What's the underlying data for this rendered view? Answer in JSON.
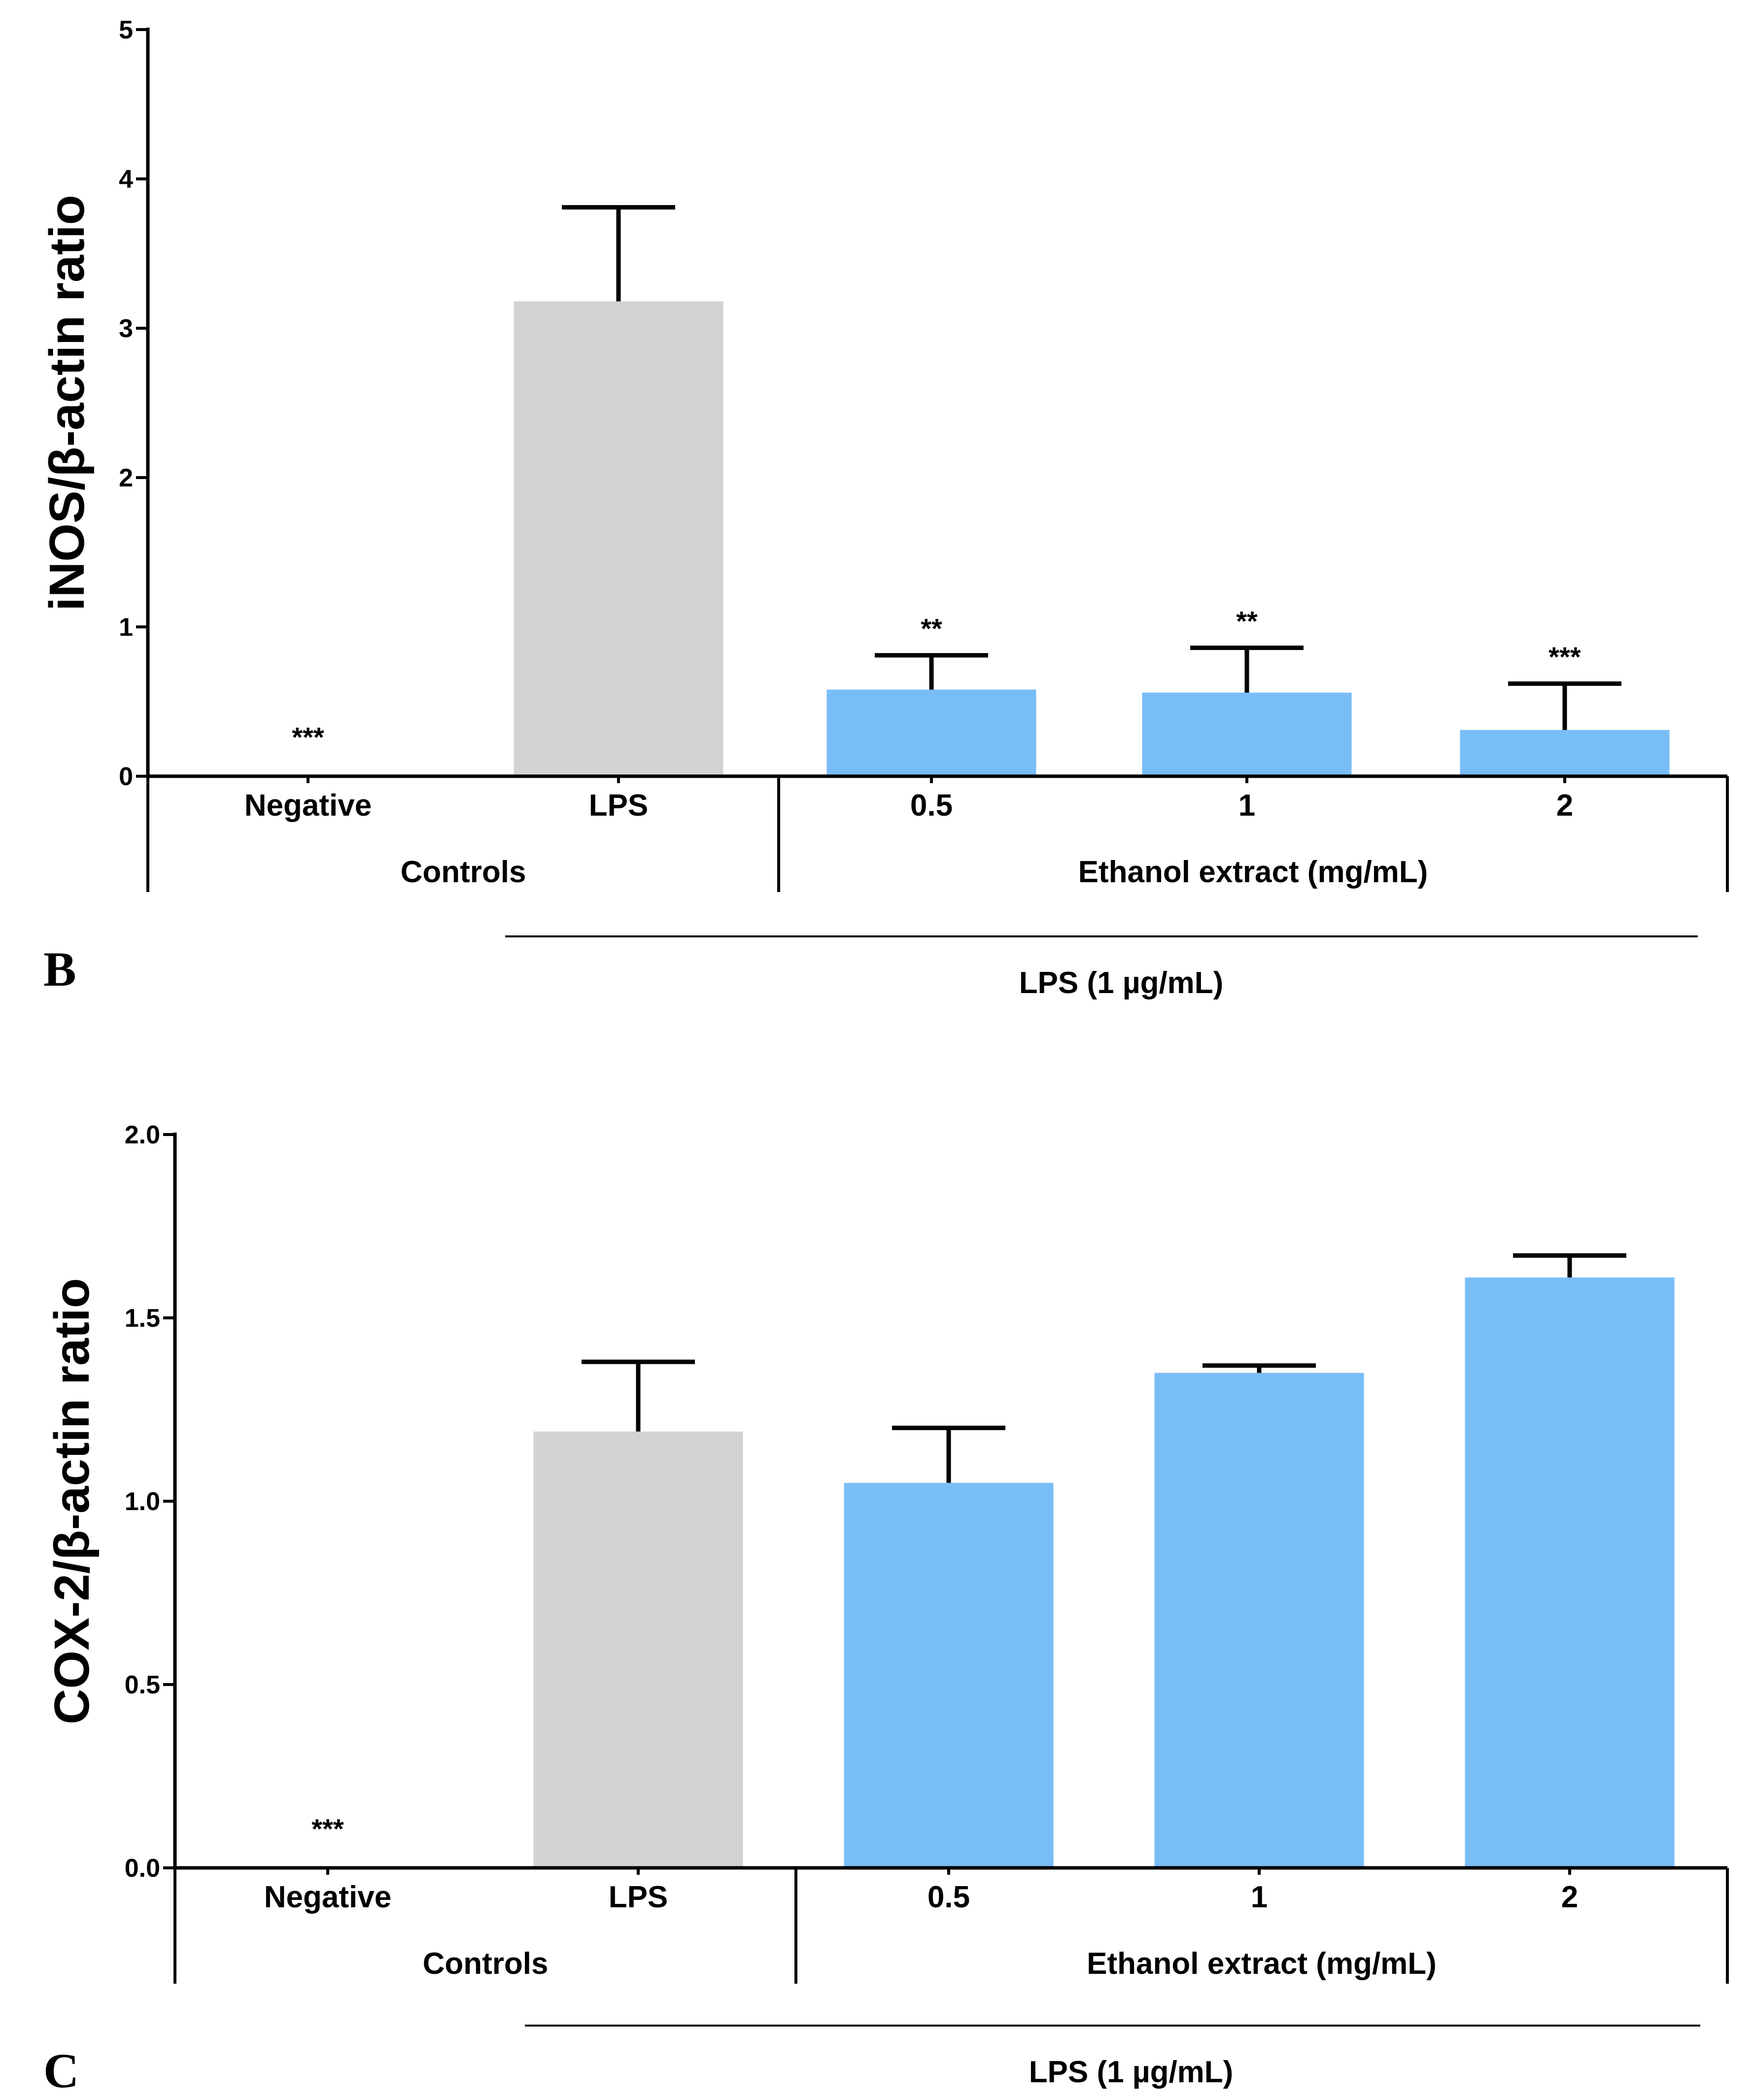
{
  "chart_data": [
    {
      "type": "bar",
      "panel": "",
      "ylabel": "iNOS/β-actin ratio",
      "ylim": [
        0,
        5
      ],
      "yticks": [
        "0",
        "1",
        "2",
        "3",
        "4",
        "5"
      ],
      "categories": [
        "Negative",
        "LPS",
        "0.5",
        "1",
        "2"
      ],
      "values": [
        0,
        3.18,
        0.58,
        0.56,
        0.31
      ],
      "errors": [
        0,
        0.63,
        0.23,
        0.3,
        0.31
      ],
      "significance": [
        "***",
        "",
        "**",
        "**",
        "***"
      ],
      "colors": [
        "#ffffff",
        "#d3d3d3",
        "#79bdf7",
        "#79bdf7",
        "#79bdf7"
      ],
      "groups": [
        {
          "label": "Controls",
          "span": [
            0,
            1
          ]
        },
        {
          "label": "Ethanol extract (mg/mL)",
          "span": [
            2,
            4
          ]
        }
      ],
      "treatment_label": "LPS (1 µg/mL)"
    },
    {
      "type": "bar",
      "panel": "B",
      "ylabel": "COX-2/β-actin ratio",
      "ylim": [
        0,
        2
      ],
      "yticks": [
        "0.0",
        "0.5",
        "1.0",
        "1.5",
        "2.0"
      ],
      "categories": [
        "Negative",
        "LPS",
        "0.5",
        "1",
        "2"
      ],
      "values": [
        0,
        1.19,
        1.05,
        1.35,
        1.61
      ],
      "errors": [
        0,
        0.19,
        0.15,
        0.02,
        0.06
      ],
      "significance": [
        "***",
        "",
        "",
        "",
        ""
      ],
      "colors": [
        "#ffffff",
        "#d3d3d3",
        "#79bdf7",
        "#79bdf7",
        "#79bdf7"
      ],
      "groups": [
        {
          "label": "Controls",
          "span": [
            0,
            1
          ]
        },
        {
          "label": "Ethanol extract (mg/mL)",
          "span": [
            2,
            4
          ]
        }
      ],
      "treatment_label": "LPS (1 µg/mL)"
    }
  ],
  "panel_c_label": "C"
}
